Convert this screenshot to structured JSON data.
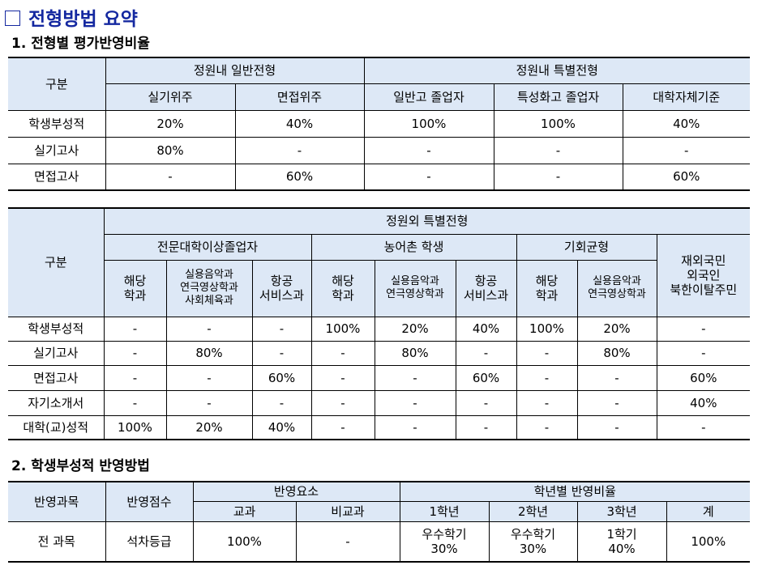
{
  "title": "전형방법 요약",
  "section1": {
    "heading": "1. 전형별 평가반영비율",
    "table1": {
      "gubun": "구분",
      "group_general": "정원내 일반전형",
      "group_special": "정원내 특별전형",
      "cols": [
        "실기위주",
        "면접위주",
        "일반고 졸업자",
        "특성화고 졸업자",
        "대학자체기준"
      ],
      "rows": [
        {
          "label": "학생부성적",
          "values": [
            "20%",
            "40%",
            "100%",
            "100%",
            "40%"
          ]
        },
        {
          "label": "실기고사",
          "values": [
            "80%",
            "-",
            "-",
            "-",
            "-"
          ]
        },
        {
          "label": "면접고사",
          "values": [
            "-",
            "60%",
            "-",
            "-",
            "60%"
          ]
        }
      ]
    },
    "table2": {
      "gubun": "구분",
      "group_outside": "정원외 특별전형",
      "sub_groups": [
        "전문대학이상졸업자",
        "농어촌 학생",
        "기회균형"
      ],
      "last_col": [
        "재외국민",
        "외국인",
        "북한이탈주민"
      ],
      "cols": [
        [
          "해당",
          "학과"
        ],
        [
          "실용음악과",
          "연극영상학과",
          "사회체육과"
        ],
        [
          "항공",
          "서비스과"
        ],
        [
          "해당",
          "학과"
        ],
        [
          "실용음악과",
          "연극영상학과"
        ],
        [
          "항공",
          "서비스과"
        ],
        [
          "해당",
          "학과"
        ],
        [
          "실용음악과",
          "연극영상학과"
        ]
      ],
      "rows": [
        {
          "label": "학생부성적",
          "values": [
            "-",
            "-",
            "-",
            "100%",
            "20%",
            "40%",
            "100%",
            "20%",
            "-"
          ]
        },
        {
          "label": "실기고사",
          "values": [
            "-",
            "80%",
            "-",
            "-",
            "80%",
            "-",
            "-",
            "80%",
            "-"
          ]
        },
        {
          "label": "면접고사",
          "values": [
            "-",
            "-",
            "60%",
            "-",
            "-",
            "60%",
            "-",
            "-",
            "60%"
          ]
        },
        {
          "label": "자기소개서",
          "values": [
            "-",
            "-",
            "-",
            "-",
            "-",
            "-",
            "-",
            "-",
            "40%"
          ]
        },
        {
          "label": "대학(교)성적",
          "values": [
            "100%",
            "20%",
            "40%",
            "-",
            "-",
            "-",
            "-",
            "-",
            "-"
          ]
        }
      ]
    }
  },
  "section2": {
    "heading": "2. 학생부성적 반영방법",
    "table3": {
      "col_subject": "반영과목",
      "col_score": "반영점수",
      "group_elements": "반영요소",
      "group_ratio": "학년별 반영비율",
      "sub_cols": [
        "교과",
        "비교과",
        "1학년",
        "2학년",
        "3학년",
        "계"
      ],
      "row": {
        "subject": "전 과목",
        "score": "석차등급",
        "gyogwa": "100%",
        "bigyogwa": "-",
        "y1": [
          "우수학기",
          "30%"
        ],
        "y2": [
          "우수학기",
          "30%"
        ],
        "y3": [
          "1학기",
          "40%"
        ],
        "total": "100%"
      }
    }
  }
}
